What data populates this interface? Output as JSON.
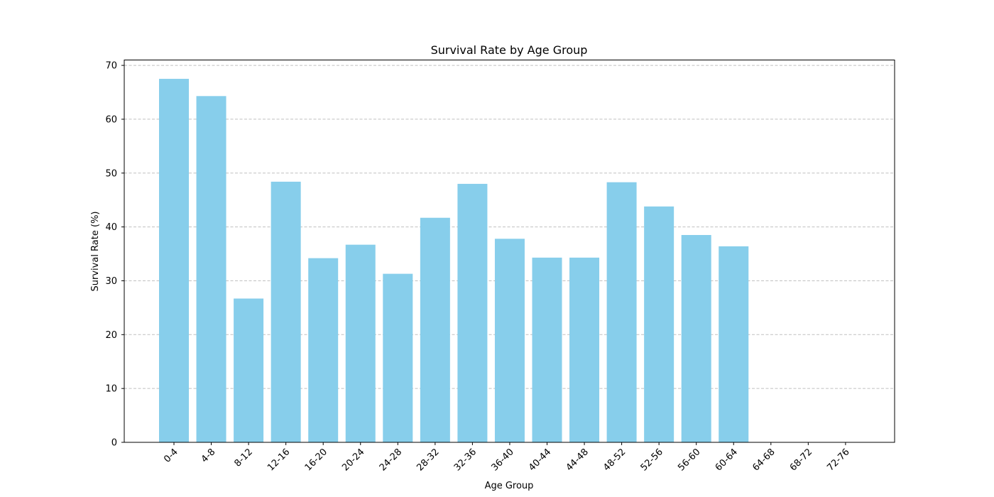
{
  "chart_data": {
    "type": "bar",
    "title": "Survival Rate by Age Group",
    "xlabel": "Age Group",
    "ylabel": "Survival Rate (%)",
    "categories": [
      "0-4",
      "4-8",
      "8-12",
      "12-16",
      "16-20",
      "20-24",
      "24-28",
      "28-32",
      "32-36",
      "36-40",
      "40-44",
      "44-48",
      "48-52",
      "52-56",
      "56-60",
      "60-64",
      "64-68",
      "68-72",
      "72-76"
    ],
    "values": [
      67.5,
      64.3,
      26.7,
      48.4,
      34.2,
      36.7,
      31.3,
      41.7,
      48.0,
      37.8,
      34.3,
      34.3,
      48.3,
      43.8,
      38.5,
      36.4,
      0,
      0,
      0
    ],
    "ylim": [
      0,
      71
    ],
    "yticks": [
      0,
      10,
      20,
      30,
      40,
      50,
      60,
      70
    ],
    "grid": "y-dashed",
    "bar_color": "#87ceeb",
    "grid_color": "#c0c0c0",
    "legend": "none"
  }
}
